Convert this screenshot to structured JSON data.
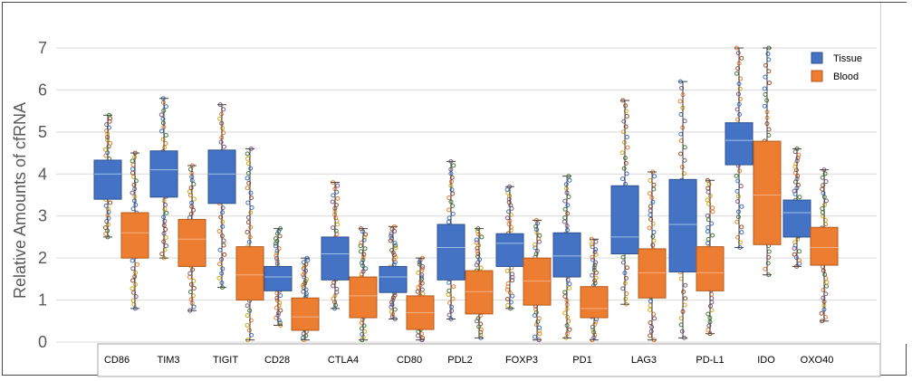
{
  "chart_data": {
    "type": "box",
    "ylabel": "Relative Amounts of cfRNA",
    "xlabel": "",
    "ylim": [
      0,
      7
    ],
    "yticks": [
      0,
      1,
      2,
      3,
      4,
      5,
      6,
      7
    ],
    "grid": true,
    "legend_position": "top-right",
    "categories": [
      "CD86",
      "TIM3",
      "TIGIT",
      "CD28",
      "CTLA4",
      "CD80",
      "PDL2",
      "FOXP3",
      "PD1",
      "LAG3",
      "PD-L1",
      "IDO",
      "OXO40"
    ],
    "boxes": [
      {
        "category": "CD86",
        "series": "Tissue",
        "min": 2.5,
        "q1": 3.4,
        "median": 4.0,
        "q3": 4.33,
        "max": 5.4
      },
      {
        "category": "CD86",
        "series": "Blood",
        "min": 0.8,
        "q1": 2.0,
        "median": 2.6,
        "q3": 3.08,
        "max": 4.5
      },
      {
        "category": "TIM3",
        "series": "Tissue",
        "min": 2.0,
        "q1": 3.45,
        "median": 4.1,
        "q3": 4.55,
        "max": 5.8
      },
      {
        "category": "TIM3",
        "series": "Blood",
        "min": 0.75,
        "q1": 1.8,
        "median": 2.45,
        "q3": 2.92,
        "max": 4.2
      },
      {
        "category": "TIGIT",
        "series": "Tissue",
        "min": 1.3,
        "q1": 3.3,
        "median": 4.0,
        "q3": 4.57,
        "max": 5.65
      },
      {
        "category": "TIGIT",
        "series": "Blood",
        "min": 0.05,
        "q1": 1.0,
        "median": 1.6,
        "q3": 2.27,
        "max": 4.6
      },
      {
        "category": "CD28",
        "series": "Tissue",
        "min": 0.4,
        "q1": 1.22,
        "median": 1.55,
        "q3": 1.8,
        "max": 2.7
      },
      {
        "category": "CD28",
        "series": "Blood",
        "min": 0.05,
        "q1": 0.28,
        "median": 0.6,
        "q3": 1.05,
        "max": 2.0
      },
      {
        "category": "CTLA4",
        "series": "Tissue",
        "min": 0.8,
        "q1": 1.48,
        "median": 2.1,
        "q3": 2.5,
        "max": 3.8
      },
      {
        "category": "CTLA4",
        "series": "Blood",
        "min": 0.05,
        "q1": 0.58,
        "median": 1.1,
        "q3": 1.55,
        "max": 2.7
      },
      {
        "category": "CD80",
        "series": "Tissue",
        "min": 0.55,
        "q1": 1.18,
        "median": 1.55,
        "q3": 1.8,
        "max": 2.75
      },
      {
        "category": "CD80",
        "series": "Blood",
        "min": 0.05,
        "q1": 0.3,
        "median": 0.7,
        "q3": 1.1,
        "max": 2.0
      },
      {
        "category": "PDL2",
        "series": "Tissue",
        "min": 0.55,
        "q1": 1.48,
        "median": 2.25,
        "q3": 2.8,
        "max": 4.3
      },
      {
        "category": "PDL2",
        "series": "Blood",
        "min": 0.1,
        "q1": 0.67,
        "median": 1.2,
        "q3": 1.7,
        "max": 2.7
      },
      {
        "category": "FOXP3",
        "series": "Tissue",
        "min": 0.8,
        "q1": 1.8,
        "median": 2.35,
        "q3": 2.58,
        "max": 3.7
      },
      {
        "category": "FOXP3",
        "series": "Blood",
        "min": 0.05,
        "q1": 0.88,
        "median": 1.45,
        "q3": 2.0,
        "max": 2.9
      },
      {
        "category": "PD1",
        "series": "Tissue",
        "min": 0.1,
        "q1": 1.55,
        "median": 2.05,
        "q3": 2.6,
        "max": 3.95
      },
      {
        "category": "PD1",
        "series": "Blood",
        "min": 0.05,
        "q1": 0.58,
        "median": 0.8,
        "q3": 1.32,
        "max": 2.45
      },
      {
        "category": "LAG3",
        "series": "Tissue",
        "min": 0.9,
        "q1": 2.1,
        "median": 2.5,
        "q3": 3.72,
        "max": 5.75
      },
      {
        "category": "LAG3",
        "series": "Blood",
        "min": 0.05,
        "q1": 1.05,
        "median": 1.65,
        "q3": 2.22,
        "max": 4.05
      },
      {
        "category": "PD-L1",
        "series": "Tissue",
        "min": 0.1,
        "q1": 1.67,
        "median": 2.8,
        "q3": 3.87,
        "max": 6.2
      },
      {
        "category": "PD-L1",
        "series": "Blood",
        "min": 0.2,
        "q1": 1.22,
        "median": 1.65,
        "q3": 2.27,
        "max": 3.85
      },
      {
        "category": "IDO",
        "series": "Tissue",
        "min": 2.25,
        "q1": 4.22,
        "median": 4.8,
        "q3": 5.22,
        "max": 7.0
      },
      {
        "category": "IDO",
        "series": "Blood",
        "min": 1.6,
        "q1": 2.32,
        "median": 3.5,
        "q3": 4.78,
        "max": 7.0
      },
      {
        "category": "OXO40",
        "series": "Tissue",
        "min": 1.8,
        "q1": 2.5,
        "median": 3.08,
        "q3": 3.38,
        "max": 4.6
      },
      {
        "category": "OXO40",
        "series": "Blood",
        "min": 0.5,
        "q1": 1.83,
        "median": 2.25,
        "q3": 2.73,
        "max": 4.1
      }
    ],
    "series": [
      {
        "name": "Tissue",
        "color": "#4472c4"
      },
      {
        "name": "Blood",
        "color": "#ed7d31"
      }
    ],
    "accent_colors": [
      "#4472c4",
      "#ed7d31",
      "#d9a520",
      "#4a7a3a"
    ]
  }
}
